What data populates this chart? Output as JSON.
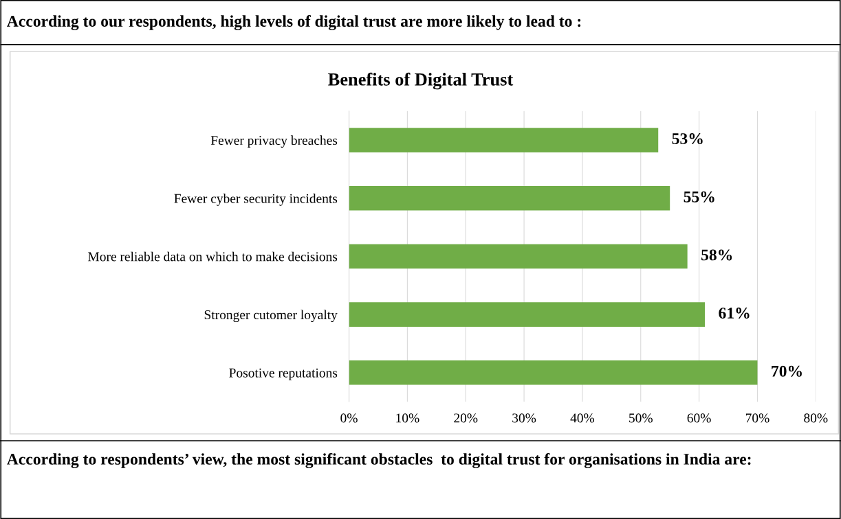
{
  "chart_data": {
    "type": "bar",
    "orientation": "horizontal",
    "title": "Benefits of Digital Trust",
    "categories": [
      "Fewer privacy breaches",
      "Fewer cyber security incidents",
      "More reliable data on which to make decisions",
      "Stronger cutomer loyalty",
      "Posotive reputations"
    ],
    "values": [
      53,
      55,
      58,
      61,
      70
    ],
    "color": "#70ad47",
    "value_labels": [
      "53%",
      "55%",
      "58%",
      "61%",
      "70%"
    ],
    "xlim": [
      0,
      80
    ],
    "xticks": [
      {
        "value": 0,
        "label": "0%"
      },
      {
        "value": 10,
        "label": "10%"
      },
      {
        "value": 20,
        "label": "20%"
      },
      {
        "value": 30,
        "label": "30%"
      },
      {
        "value": 40,
        "label": "40%"
      },
      {
        "value": 50,
        "label": "50%"
      },
      {
        "value": 60,
        "label": "60%"
      },
      {
        "value": 70,
        "label": "70%"
      },
      {
        "value": 80,
        "label": "80%"
      }
    ],
    "grid": "x",
    "annotations": [
      "According to our respondents, high levels of digital trust are more likely to lead to :",
      "According to respondents’ view, the most significant obstacles  to digital trust for organisations in India are:"
    ]
  }
}
